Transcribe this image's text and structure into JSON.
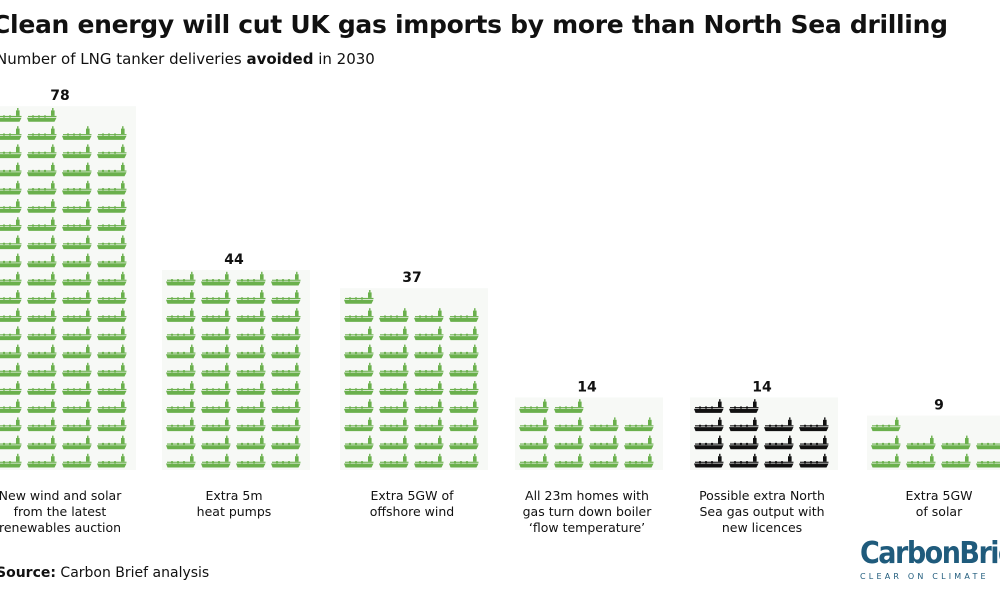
{
  "title": "Clean energy will cut UK gas imports by more than North Sea drilling",
  "subtitle_pre": "Number of LNG tanker deliveries ",
  "subtitle_bold": "avoided",
  "subtitle_post": " in 2030",
  "source_label": "Source:",
  "source_text": " Carbon Brief analysis",
  "logo": {
    "word1": "Carbon",
    "word2": "Brief",
    "tagline": "CLEAR ON CLIMATE"
  },
  "colors": {
    "clean": "#6ab04c",
    "north_sea": "#111111"
  },
  "icon": "lng-tanker-icon",
  "chart_data": {
    "type": "pictogram",
    "title": "Clean energy will cut UK gas imports by more than North Sea drilling",
    "subtitle": "Number of LNG tanker deliveries avoided in 2030",
    "unit": "LNG tanker deliveries",
    "categories": [
      "New wind and solar from the latest renewables auction",
      "Extra 5m heat pumps",
      "Extra 5GW of offshore wind",
      "All 23m homes with gas turn down boiler ‘flow temperature’",
      "Possible extra North Sea gas output with new licences",
      "Extra 5GW of solar"
    ],
    "values": [
      78,
      44,
      37,
      14,
      14,
      9
    ],
    "value_labels": [
      "78",
      "44",
      "37",
      "14",
      "14",
      "9"
    ],
    "category_labels": [
      [
        "New wind and solar",
        "from the latest",
        "renewables auction"
      ],
      [
        "Extra 5m",
        "heat pumps"
      ],
      [
        "Extra 5GW of",
        "offshore wind"
      ],
      [
        "All 23m homes with",
        "gas turn down boiler",
        "‘flow temperature’"
      ],
      [
        "Possible extra North",
        "Sea gas output with",
        "new licences"
      ],
      [
        "Extra 5GW",
        "of solar"
      ]
    ],
    "color_keys": [
      "clean",
      "clean",
      "clean",
      "clean",
      "north_sea",
      "clean"
    ],
    "icons_per_row": 4,
    "source": "Carbon Brief analysis"
  }
}
